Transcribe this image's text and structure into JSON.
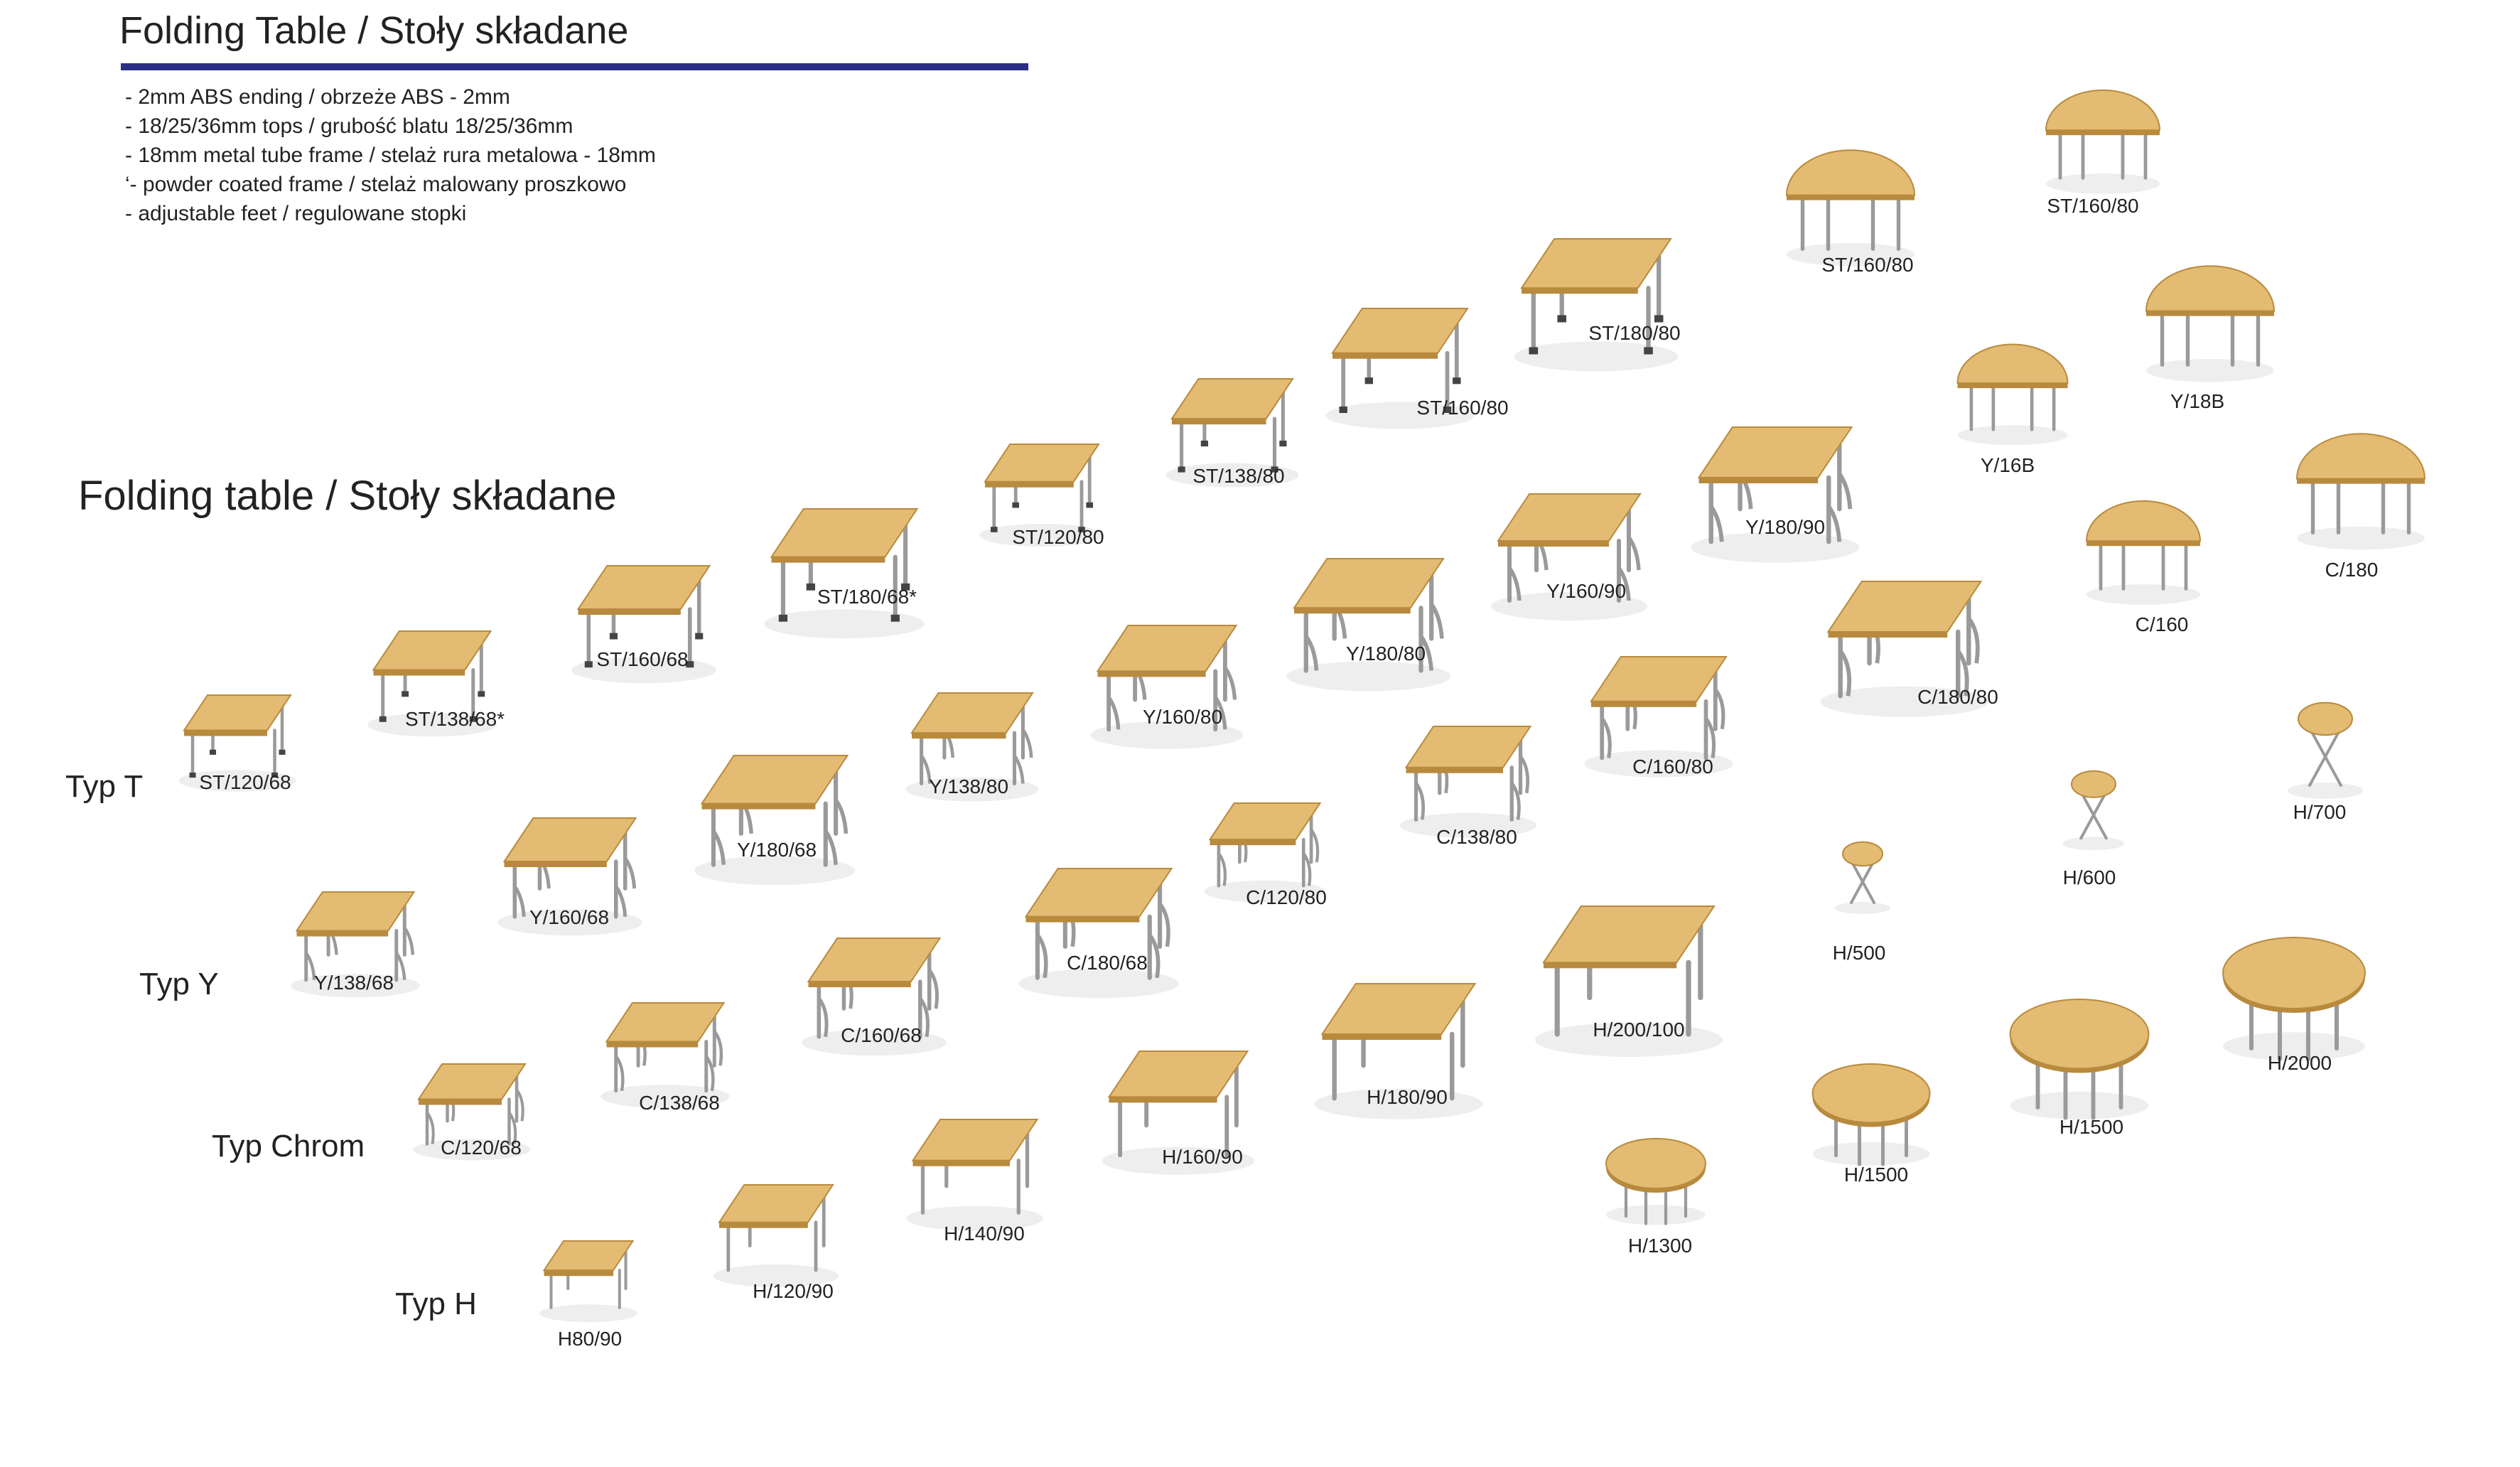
{
  "header": {
    "title": "Folding Table / Stoły składane",
    "features": [
      "- 2mm ABS ending / obrzeże ABS - 2mm",
      "- 18/25/36mm tops / grubość blatu 18/25/36mm",
      "- 18mm metal tube frame / stelaż rura metalowa - 18mm",
      "‘- powder coated frame / stelaż malowany proszkowo",
      "- adjustable feet / regulowane stopki"
    ]
  },
  "section_title": "Folding table / Stoły składane",
  "types": {
    "t": "Typ T",
    "y": "Typ Y",
    "chrom": "Typ Chrom",
    "h": "Typ H"
  },
  "colors": {
    "accent_rule": "#2b2f86",
    "table_top": "#e3bb73",
    "table_edge": "#b88a3d",
    "frame": "#9a9a9a"
  },
  "products": [
    {
      "label": "ST/120/68",
      "shape": "rect",
      "frame": "st"
    },
    {
      "label": "ST/138/68*",
      "shape": "rect",
      "frame": "st"
    },
    {
      "label": "ST/160/68",
      "shape": "rect",
      "frame": "st"
    },
    {
      "label": "ST/180/68*",
      "shape": "rect",
      "frame": "st"
    },
    {
      "label": "ST/120/80",
      "shape": "rect",
      "frame": "st"
    },
    {
      "label": "ST/138/80",
      "shape": "rect",
      "frame": "st"
    },
    {
      "label": "ST/160/80",
      "shape": "rect",
      "frame": "st"
    },
    {
      "label": "ST/180/80",
      "shape": "rect",
      "frame": "st"
    },
    {
      "label": "ST/160/80",
      "shape": "half",
      "frame": "st"
    },
    {
      "label": "ST/160/80",
      "shape": "half",
      "frame": "st"
    },
    {
      "label": "Y/138/68",
      "shape": "rect",
      "frame": "y"
    },
    {
      "label": "Y/160/68",
      "shape": "rect",
      "frame": "y"
    },
    {
      "label": "Y/180/68",
      "shape": "rect",
      "frame": "y"
    },
    {
      "label": "Y/138/80",
      "shape": "rect",
      "frame": "y"
    },
    {
      "label": "Y/160/80",
      "shape": "rect",
      "frame": "y"
    },
    {
      "label": "Y/180/80",
      "shape": "rect",
      "frame": "y"
    },
    {
      "label": "Y/160/90",
      "shape": "rect",
      "frame": "y"
    },
    {
      "label": "Y/180/90",
      "shape": "rect",
      "frame": "y"
    },
    {
      "label": "Y/16B",
      "shape": "half",
      "frame": "y"
    },
    {
      "label": "Y/18B",
      "shape": "half",
      "frame": "y"
    },
    {
      "label": "C/120/68",
      "shape": "rect",
      "frame": "c"
    },
    {
      "label": "C/138/68",
      "shape": "rect",
      "frame": "c"
    },
    {
      "label": "C/160/68",
      "shape": "rect",
      "frame": "c"
    },
    {
      "label": "C/180/68",
      "shape": "rect",
      "frame": "c"
    },
    {
      "label": "C/120/80",
      "shape": "rect",
      "frame": "c"
    },
    {
      "label": "C/138/80",
      "shape": "rect",
      "frame": "c"
    },
    {
      "label": "C/160/80",
      "shape": "rect",
      "frame": "c"
    },
    {
      "label": "C/180/80",
      "shape": "rect",
      "frame": "c"
    },
    {
      "label": "C/160",
      "shape": "half",
      "frame": "c"
    },
    {
      "label": "C/180",
      "shape": "half",
      "frame": "c"
    },
    {
      "label": "H80/90",
      "shape": "rect",
      "frame": "h"
    },
    {
      "label": "H/120/90",
      "shape": "rect",
      "frame": "h"
    },
    {
      "label": "H/140/90",
      "shape": "rect",
      "frame": "h"
    },
    {
      "label": "H/160/90",
      "shape": "rect",
      "frame": "h"
    },
    {
      "label": "H/180/90",
      "shape": "rect",
      "frame": "h"
    },
    {
      "label": "H/200/100",
      "shape": "rect",
      "frame": "h"
    },
    {
      "label": "H/500",
      "shape": "stool",
      "frame": "h"
    },
    {
      "label": "H/600",
      "shape": "stool",
      "frame": "h"
    },
    {
      "label": "H/700",
      "shape": "stool",
      "frame": "h"
    },
    {
      "label": "H/1300",
      "shape": "round",
      "frame": "h"
    },
    {
      "label": "H/1500",
      "shape": "round",
      "frame": "h"
    },
    {
      "label": "H/1500",
      "shape": "round",
      "frame": "h"
    },
    {
      "label": "H/2000",
      "shape": "round",
      "frame": "h"
    }
  ]
}
